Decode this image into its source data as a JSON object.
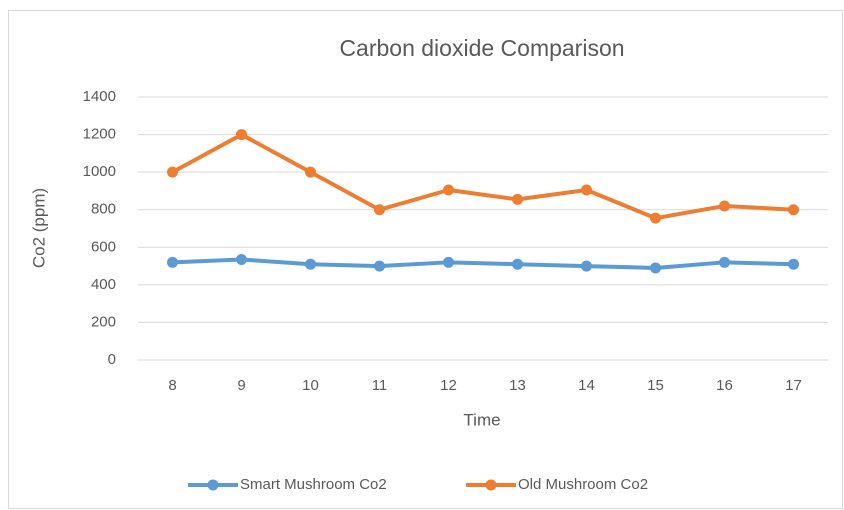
{
  "chart_data": {
    "type": "line",
    "title": "Carbon dioxide Comparison",
    "x_label": "Time",
    "y_label": "Co2 (ppm)",
    "categories": [
      "8",
      "9",
      "10",
      "11",
      "12",
      "13",
      "14",
      "15",
      "16",
      "17"
    ],
    "series": [
      {
        "name": "Smart Mushroom Co2",
        "color": "#5b9bd5",
        "values": [
          520,
          535,
          510,
          500,
          520,
          510,
          500,
          490,
          520,
          510
        ]
      },
      {
        "name": "Old Mushroom Co2",
        "color": "#ed7d31",
        "values": [
          1000,
          1200,
          1000,
          800,
          905,
          855,
          905,
          755,
          820,
          800
        ]
      }
    ],
    "ylim": [
      0,
      1400
    ],
    "yticks": [
      0,
      200,
      400,
      600,
      800,
      1000,
      1200,
      1400
    ],
    "grid": true,
    "legend": "bottom"
  }
}
